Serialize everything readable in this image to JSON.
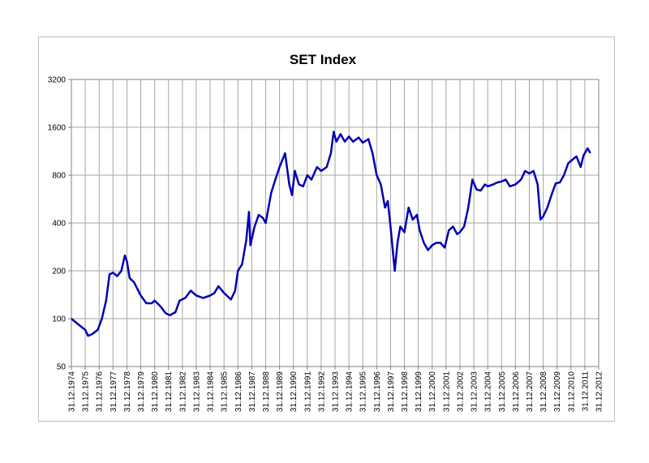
{
  "chart_data": {
    "type": "line",
    "title": "SET Index",
    "log_y": true,
    "grid": true,
    "ylim": [
      50,
      3200
    ],
    "yticks": [
      50,
      100,
      200,
      400,
      800,
      1600,
      3200
    ],
    "xlim": [
      1975,
      2013
    ],
    "xticks": [
      {
        "value": 1975,
        "label": "31.12.1974"
      },
      {
        "value": 1976,
        "label": "31.12.1975"
      },
      {
        "value": 1977,
        "label": "31.12.1976"
      },
      {
        "value": 1978,
        "label": "31.12.1977"
      },
      {
        "value": 1979,
        "label": "31.12.1978"
      },
      {
        "value": 1980,
        "label": "31.12.1979"
      },
      {
        "value": 1981,
        "label": "31.12.1980"
      },
      {
        "value": 1982,
        "label": "31.12.1981"
      },
      {
        "value": 1983,
        "label": "31.12.1982"
      },
      {
        "value": 1984,
        "label": "31.12.1983"
      },
      {
        "value": 1985,
        "label": "31.12.1984"
      },
      {
        "value": 1986,
        "label": "31.12.1985"
      },
      {
        "value": 1987,
        "label": "31.12.1986"
      },
      {
        "value": 1988,
        "label": "31.12.1987"
      },
      {
        "value": 1989,
        "label": "31.12.1988"
      },
      {
        "value": 1990,
        "label": "31.12.1989"
      },
      {
        "value": 1991,
        "label": "31.12.1990"
      },
      {
        "value": 1992,
        "label": "31.12.1991"
      },
      {
        "value": 1993,
        "label": "31.12.1992"
      },
      {
        "value": 1994,
        "label": "31.12.1993"
      },
      {
        "value": 1995,
        "label": "31.12.1994"
      },
      {
        "value": 1996,
        "label": "31.12.1995"
      },
      {
        "value": 1997,
        "label": "31.12.1996"
      },
      {
        "value": 1998,
        "label": "31.12.1997"
      },
      {
        "value": 1999,
        "label": "31.12.1998"
      },
      {
        "value": 2000,
        "label": "31.12.1999"
      },
      {
        "value": 2001,
        "label": "31.12.2000"
      },
      {
        "value": 2002,
        "label": "31.12.2001"
      },
      {
        "value": 2003,
        "label": "31.12.2002"
      },
      {
        "value": 2004,
        "label": "31.12.2003"
      },
      {
        "value": 2005,
        "label": "31.12.2004"
      },
      {
        "value": 2006,
        "label": "31.12.2005"
      },
      {
        "value": 2007,
        "label": "31.12.2006"
      },
      {
        "value": 2008,
        "label": "31.12.2007"
      },
      {
        "value": 2009,
        "label": "31.12.2008"
      },
      {
        "value": 2010,
        "label": "31.12.2009"
      },
      {
        "value": 2011,
        "label": "31.12.2010"
      },
      {
        "value": 2012,
        "label": "31.12.2011"
      },
      {
        "value": 2013,
        "label": "31.12.2012"
      }
    ],
    "x": [
      1975,
      1975.5,
      1976,
      1976.2,
      1976.5,
      1976.9,
      1977.2,
      1977.5,
      1977.75,
      1978,
      1978.3,
      1978.6,
      1978.85,
      1979,
      1979.2,
      1979.5,
      1980,
      1980.4,
      1980.8,
      1981,
      1981.4,
      1981.8,
      1982.1,
      1982.5,
      1982.8,
      1983.2,
      1983.6,
      1984,
      1984.5,
      1985,
      1985.3,
      1985.6,
      1986,
      1986.5,
      1986.8,
      1987,
      1987.3,
      1987.6,
      1987.8,
      1987.9,
      1988.2,
      1988.5,
      1988.8,
      1989,
      1989.4,
      1989.7,
      1990,
      1990.4,
      1990.7,
      1990.9,
      1991.1,
      1991.4,
      1991.7,
      1992,
      1992.3,
      1992.7,
      1993,
      1993.4,
      1993.7,
      1993.9,
      1994.1,
      1994.4,
      1994.7,
      1995,
      1995.3,
      1995.7,
      1996,
      1996.4,
      1996.7,
      1997,
      1997.3,
      1997.6,
      1997.8,
      1998,
      1998.3,
      1998.5,
      1998.7,
      1999,
      1999.3,
      1999.6,
      1999.9,
      2000.1,
      2000.4,
      2000.7,
      2001,
      2001.3,
      2001.6,
      2001.9,
      2002.2,
      2002.5,
      2002.8,
      2003,
      2003.3,
      2003.6,
      2003.9,
      2004.2,
      2004.5,
      2004.8,
      2005,
      2005.4,
      2005.7,
      2006,
      2006.3,
      2006.6,
      2007,
      2007.4,
      2007.7,
      2008,
      2008.3,
      2008.6,
      2008.8,
      2009,
      2009.3,
      2009.6,
      2009.9,
      2010.2,
      2010.5,
      2010.8,
      2011.1,
      2011.4,
      2011.7,
      2011.9,
      2012.2,
      2012.4
    ],
    "series": [
      {
        "color": "#0000b4",
        "values": [
          100,
          92,
          85,
          78,
          80,
          85,
          100,
          130,
          190,
          195,
          185,
          200,
          250,
          230,
          180,
          170,
          140,
          125,
          125,
          130,
          120,
          108,
          105,
          110,
          130,
          135,
          150,
          140,
          135,
          140,
          145,
          160,
          145,
          132,
          150,
          200,
          220,
          310,
          470,
          290,
          380,
          450,
          430,
          400,
          620,
          750,
          900,
          1100,
          700,
          600,
          850,
          700,
          680,
          800,
          750,
          900,
          850,
          900,
          1100,
          1500,
          1300,
          1450,
          1300,
          1400,
          1300,
          1380,
          1280,
          1350,
          1100,
          800,
          700,
          500,
          550,
          380,
          200,
          300,
          380,
          350,
          500,
          420,
          450,
          360,
          300,
          270,
          290,
          300,
          300,
          280,
          360,
          380,
          340,
          350,
          380,
          500,
          750,
          650,
          640,
          700,
          680,
          700,
          720,
          730,
          750,
          680,
          700,
          750,
          850,
          820,
          850,
          700,
          420,
          440,
          500,
          600,
          710,
          720,
          800,
          950,
          1000,
          1050,
          900,
          1060,
          1180,
          1100
        ]
      }
    ]
  }
}
